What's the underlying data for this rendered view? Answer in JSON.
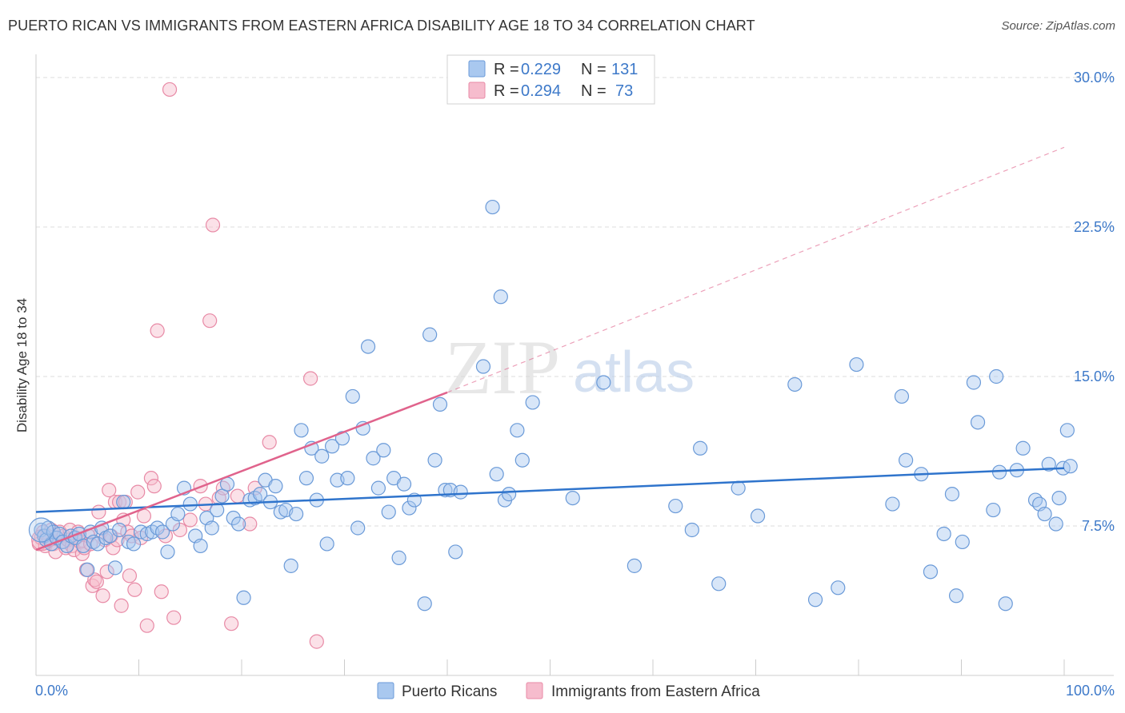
{
  "header": {
    "title": "PUERTO RICAN VS IMMIGRANTS FROM EASTERN AFRICA DISABILITY AGE 18 TO 34 CORRELATION CHART",
    "source": "Source: ZipAtlas.com"
  },
  "watermark": {
    "zip": "ZIP",
    "atlas": "atlas"
  },
  "colors": {
    "blue_fill": "#a9c8ef",
    "blue_stroke": "#6a9ad8",
    "blue_line": "#2f74cc",
    "pink_fill": "#f6bccd",
    "pink_stroke": "#e88aa6",
    "pink_line": "#e0638c",
    "grid": "#dddddd",
    "tick_text": "#3d79c9"
  },
  "legend": {
    "rows": [
      {
        "r_label": "R = ",
        "r_value": "0.229",
        "n_label": "N = ",
        "n_value": "131",
        "series": "blue"
      },
      {
        "r_label": "R = ",
        "r_value": "0.294",
        "n_label": "N = ",
        "n_value": "73",
        "series": "pink"
      }
    ]
  },
  "chart_data": {
    "type": "scatter",
    "title": "PUERTO RICAN VS IMMIGRANTS FROM EASTERN AFRICA DISABILITY AGE 18 TO 34 CORRELATION CHART",
    "xlabel": "",
    "ylabel": "Disability Age 18 to 34",
    "xlim": [
      0,
      100
    ],
    "ylim": [
      0,
      30
    ],
    "x_tick_labels": [
      "0.0%",
      "100.0%"
    ],
    "y_ticks": [
      7.5,
      15.0,
      22.5,
      30.0
    ],
    "y_tick_labels": [
      "7.5%",
      "15.0%",
      "22.5%",
      "30.0%"
    ],
    "grid": true,
    "legend_placement": "top-center",
    "series": [
      {
        "name": "Puerto Ricans",
        "r": 0.229,
        "n": 131,
        "trend": {
          "x": [
            0,
            100
          ],
          "y": [
            8.2,
            10.4
          ],
          "dashed": false
        },
        "points": [
          [
            0.5,
            7.3
          ],
          [
            0.8,
            7.0
          ],
          [
            1.0,
            6.8
          ],
          [
            1.2,
            7.4
          ],
          [
            1.5,
            6.6
          ],
          [
            1.7,
            7.2
          ],
          [
            2.0,
            6.9
          ],
          [
            2.3,
            7.1
          ],
          [
            2.6,
            6.7
          ],
          [
            3.0,
            6.5
          ],
          [
            3.4,
            7.0
          ],
          [
            3.8,
            6.9
          ],
          [
            4.2,
            7.1
          ],
          [
            4.6,
            6.5
          ],
          [
            5.0,
            5.3
          ],
          [
            5.3,
            7.2
          ],
          [
            5.6,
            6.7
          ],
          [
            6.0,
            6.6
          ],
          [
            6.4,
            7.4
          ],
          [
            6.8,
            6.9
          ],
          [
            7.2,
            7.0
          ],
          [
            7.7,
            5.4
          ],
          [
            8.1,
            7.3
          ],
          [
            8.5,
            8.7
          ],
          [
            9.0,
            6.7
          ],
          [
            9.5,
            6.6
          ],
          [
            10.2,
            7.2
          ],
          [
            10.8,
            7.1
          ],
          [
            11.3,
            7.2
          ],
          [
            11.8,
            7.4
          ],
          [
            12.3,
            7.2
          ],
          [
            12.8,
            6.2
          ],
          [
            13.3,
            7.6
          ],
          [
            13.8,
            8.1
          ],
          [
            14.4,
            9.4
          ],
          [
            15.0,
            8.6
          ],
          [
            15.5,
            7.0
          ],
          [
            16.0,
            6.5
          ],
          [
            16.6,
            7.9
          ],
          [
            17.1,
            7.4
          ],
          [
            17.6,
            8.3
          ],
          [
            18.1,
            9.0
          ],
          [
            18.6,
            9.6
          ],
          [
            19.2,
            7.9
          ],
          [
            19.7,
            7.6
          ],
          [
            20.2,
            3.9
          ],
          [
            20.8,
            8.8
          ],
          [
            21.3,
            8.9
          ],
          [
            21.8,
            9.1
          ],
          [
            22.3,
            9.8
          ],
          [
            22.8,
            8.7
          ],
          [
            23.3,
            9.5
          ],
          [
            23.8,
            8.2
          ],
          [
            24.3,
            8.3
          ],
          [
            24.8,
            5.5
          ],
          [
            25.3,
            8.1
          ],
          [
            25.8,
            12.3
          ],
          [
            26.3,
            9.9
          ],
          [
            26.8,
            11.4
          ],
          [
            27.3,
            8.8
          ],
          [
            27.8,
            11.0
          ],
          [
            28.3,
            6.6
          ],
          [
            28.8,
            11.5
          ],
          [
            29.3,
            9.8
          ],
          [
            29.8,
            11.9
          ],
          [
            30.3,
            9.9
          ],
          [
            30.8,
            14.0
          ],
          [
            31.3,
            7.4
          ],
          [
            31.8,
            12.4
          ],
          [
            32.3,
            16.5
          ],
          [
            32.8,
            10.9
          ],
          [
            33.3,
            9.4
          ],
          [
            33.8,
            11.3
          ],
          [
            34.3,
            8.2
          ],
          [
            34.8,
            9.9
          ],
          [
            35.3,
            5.9
          ],
          [
            35.8,
            9.6
          ],
          [
            36.3,
            8.4
          ],
          [
            36.8,
            8.8
          ],
          [
            37.8,
            3.6
          ],
          [
            38.3,
            17.1
          ],
          [
            38.8,
            10.8
          ],
          [
            39.3,
            13.6
          ],
          [
            39.8,
            9.3
          ],
          [
            40.3,
            9.3
          ],
          [
            40.8,
            6.2
          ],
          [
            41.3,
            9.2
          ],
          [
            43.5,
            15.5
          ],
          [
            44.4,
            23.5
          ],
          [
            44.8,
            10.1
          ],
          [
            45.2,
            19.0
          ],
          [
            45.6,
            8.8
          ],
          [
            46.0,
            9.1
          ],
          [
            46.8,
            12.3
          ],
          [
            47.3,
            10.8
          ],
          [
            48.3,
            13.7
          ],
          [
            52.2,
            8.9
          ],
          [
            55.2,
            14.7
          ],
          [
            58.2,
            5.5
          ],
          [
            62.2,
            8.5
          ],
          [
            63.8,
            7.3
          ],
          [
            64.6,
            11.4
          ],
          [
            66.4,
            4.6
          ],
          [
            68.3,
            9.4
          ],
          [
            70.2,
            8.0
          ],
          [
            73.8,
            14.6
          ],
          [
            75.8,
            3.8
          ],
          [
            78.0,
            4.4
          ],
          [
            79.8,
            15.6
          ],
          [
            83.3,
            8.6
          ],
          [
            84.2,
            14.0
          ],
          [
            84.6,
            10.8
          ],
          [
            86.1,
            10.1
          ],
          [
            87.0,
            5.2
          ],
          [
            88.3,
            7.1
          ],
          [
            89.1,
            9.1
          ],
          [
            89.5,
            4.0
          ],
          [
            90.1,
            6.7
          ],
          [
            91.2,
            14.7
          ],
          [
            91.6,
            12.7
          ],
          [
            93.1,
            8.3
          ],
          [
            93.4,
            15.0
          ],
          [
            93.7,
            10.2
          ],
          [
            94.3,
            3.6
          ],
          [
            95.4,
            10.3
          ],
          [
            96.0,
            11.4
          ],
          [
            97.2,
            8.8
          ],
          [
            97.6,
            8.6
          ],
          [
            98.1,
            8.1
          ],
          [
            98.5,
            10.6
          ],
          [
            99.2,
            7.6
          ],
          [
            99.5,
            8.9
          ],
          [
            99.9,
            10.4
          ],
          [
            100.3,
            12.3
          ],
          [
            100.6,
            10.5
          ]
        ]
      },
      {
        "name": "Immigrants from Eastern Africa",
        "r": 0.294,
        "n": 73,
        "trend": {
          "x": [
            0,
            40
          ],
          "y": [
            6.3,
            14.2
          ],
          "dashed": false,
          "extension": {
            "x": [
              40,
              100
            ],
            "y": [
              14.2,
              26.5
            ],
            "dashed": true
          }
        },
        "points": [
          [
            0.3,
            6.6
          ],
          [
            0.5,
            6.9
          ],
          [
            0.7,
            7.2
          ],
          [
            0.9,
            6.5
          ],
          [
            1.1,
            7.0
          ],
          [
            1.3,
            6.8
          ],
          [
            1.5,
            7.3
          ],
          [
            1.7,
            6.6
          ],
          [
            1.9,
            6.2
          ],
          [
            2.1,
            6.9
          ],
          [
            2.3,
            7.2
          ],
          [
            2.5,
            6.7
          ],
          [
            2.7,
            7.0
          ],
          [
            2.9,
            6.4
          ],
          [
            3.1,
            6.8
          ],
          [
            3.3,
            7.3
          ],
          [
            3.5,
            6.5
          ],
          [
            3.7,
            6.3
          ],
          [
            3.9,
            6.9
          ],
          [
            4.1,
            7.2
          ],
          [
            4.3,
            6.7
          ],
          [
            4.5,
            6.1
          ],
          [
            4.7,
            6.4
          ],
          [
            4.9,
            5.3
          ],
          [
            5.1,
            7.0
          ],
          [
            5.3,
            6.6
          ],
          [
            5.5,
            4.5
          ],
          [
            5.7,
            4.8
          ],
          [
            5.9,
            4.7
          ],
          [
            6.1,
            8.2
          ],
          [
            6.3,
            7.2
          ],
          [
            6.5,
            4.0
          ],
          [
            6.7,
            6.8
          ],
          [
            6.9,
            5.2
          ],
          [
            7.1,
            9.3
          ],
          [
            7.3,
            7.0
          ],
          [
            7.5,
            6.4
          ],
          [
            7.7,
            8.7
          ],
          [
            7.9,
            6.8
          ],
          [
            8.1,
            8.7
          ],
          [
            8.3,
            3.5
          ],
          [
            8.5,
            7.8
          ],
          [
            8.7,
            8.7
          ],
          [
            8.9,
            7.2
          ],
          [
            9.1,
            5.0
          ],
          [
            9.3,
            7.0
          ],
          [
            9.6,
            4.3
          ],
          [
            9.9,
            9.2
          ],
          [
            10.2,
            6.9
          ],
          [
            10.5,
            8.0
          ],
          [
            10.8,
            2.5
          ],
          [
            11.2,
            9.9
          ],
          [
            11.5,
            9.5
          ],
          [
            11.8,
            17.3
          ],
          [
            12.2,
            4.2
          ],
          [
            12.6,
            7.0
          ],
          [
            13.0,
            29.4
          ],
          [
            13.4,
            2.9
          ],
          [
            14.0,
            7.3
          ],
          [
            15.0,
            7.8
          ],
          [
            16.0,
            9.5
          ],
          [
            16.5,
            8.6
          ],
          [
            16.9,
            17.8
          ],
          [
            17.2,
            22.6
          ],
          [
            17.8,
            8.9
          ],
          [
            18.2,
            9.4
          ],
          [
            19.0,
            2.6
          ],
          [
            19.6,
            9.0
          ],
          [
            20.8,
            7.6
          ],
          [
            21.3,
            9.4
          ],
          [
            22.7,
            11.7
          ],
          [
            26.7,
            14.9
          ],
          [
            27.3,
            1.7
          ]
        ]
      }
    ]
  },
  "bottom_legend": {
    "items": [
      {
        "label": "Puerto Ricans",
        "series": "blue"
      },
      {
        "label": "Immigrants from Eastern Africa",
        "series": "pink"
      }
    ]
  }
}
